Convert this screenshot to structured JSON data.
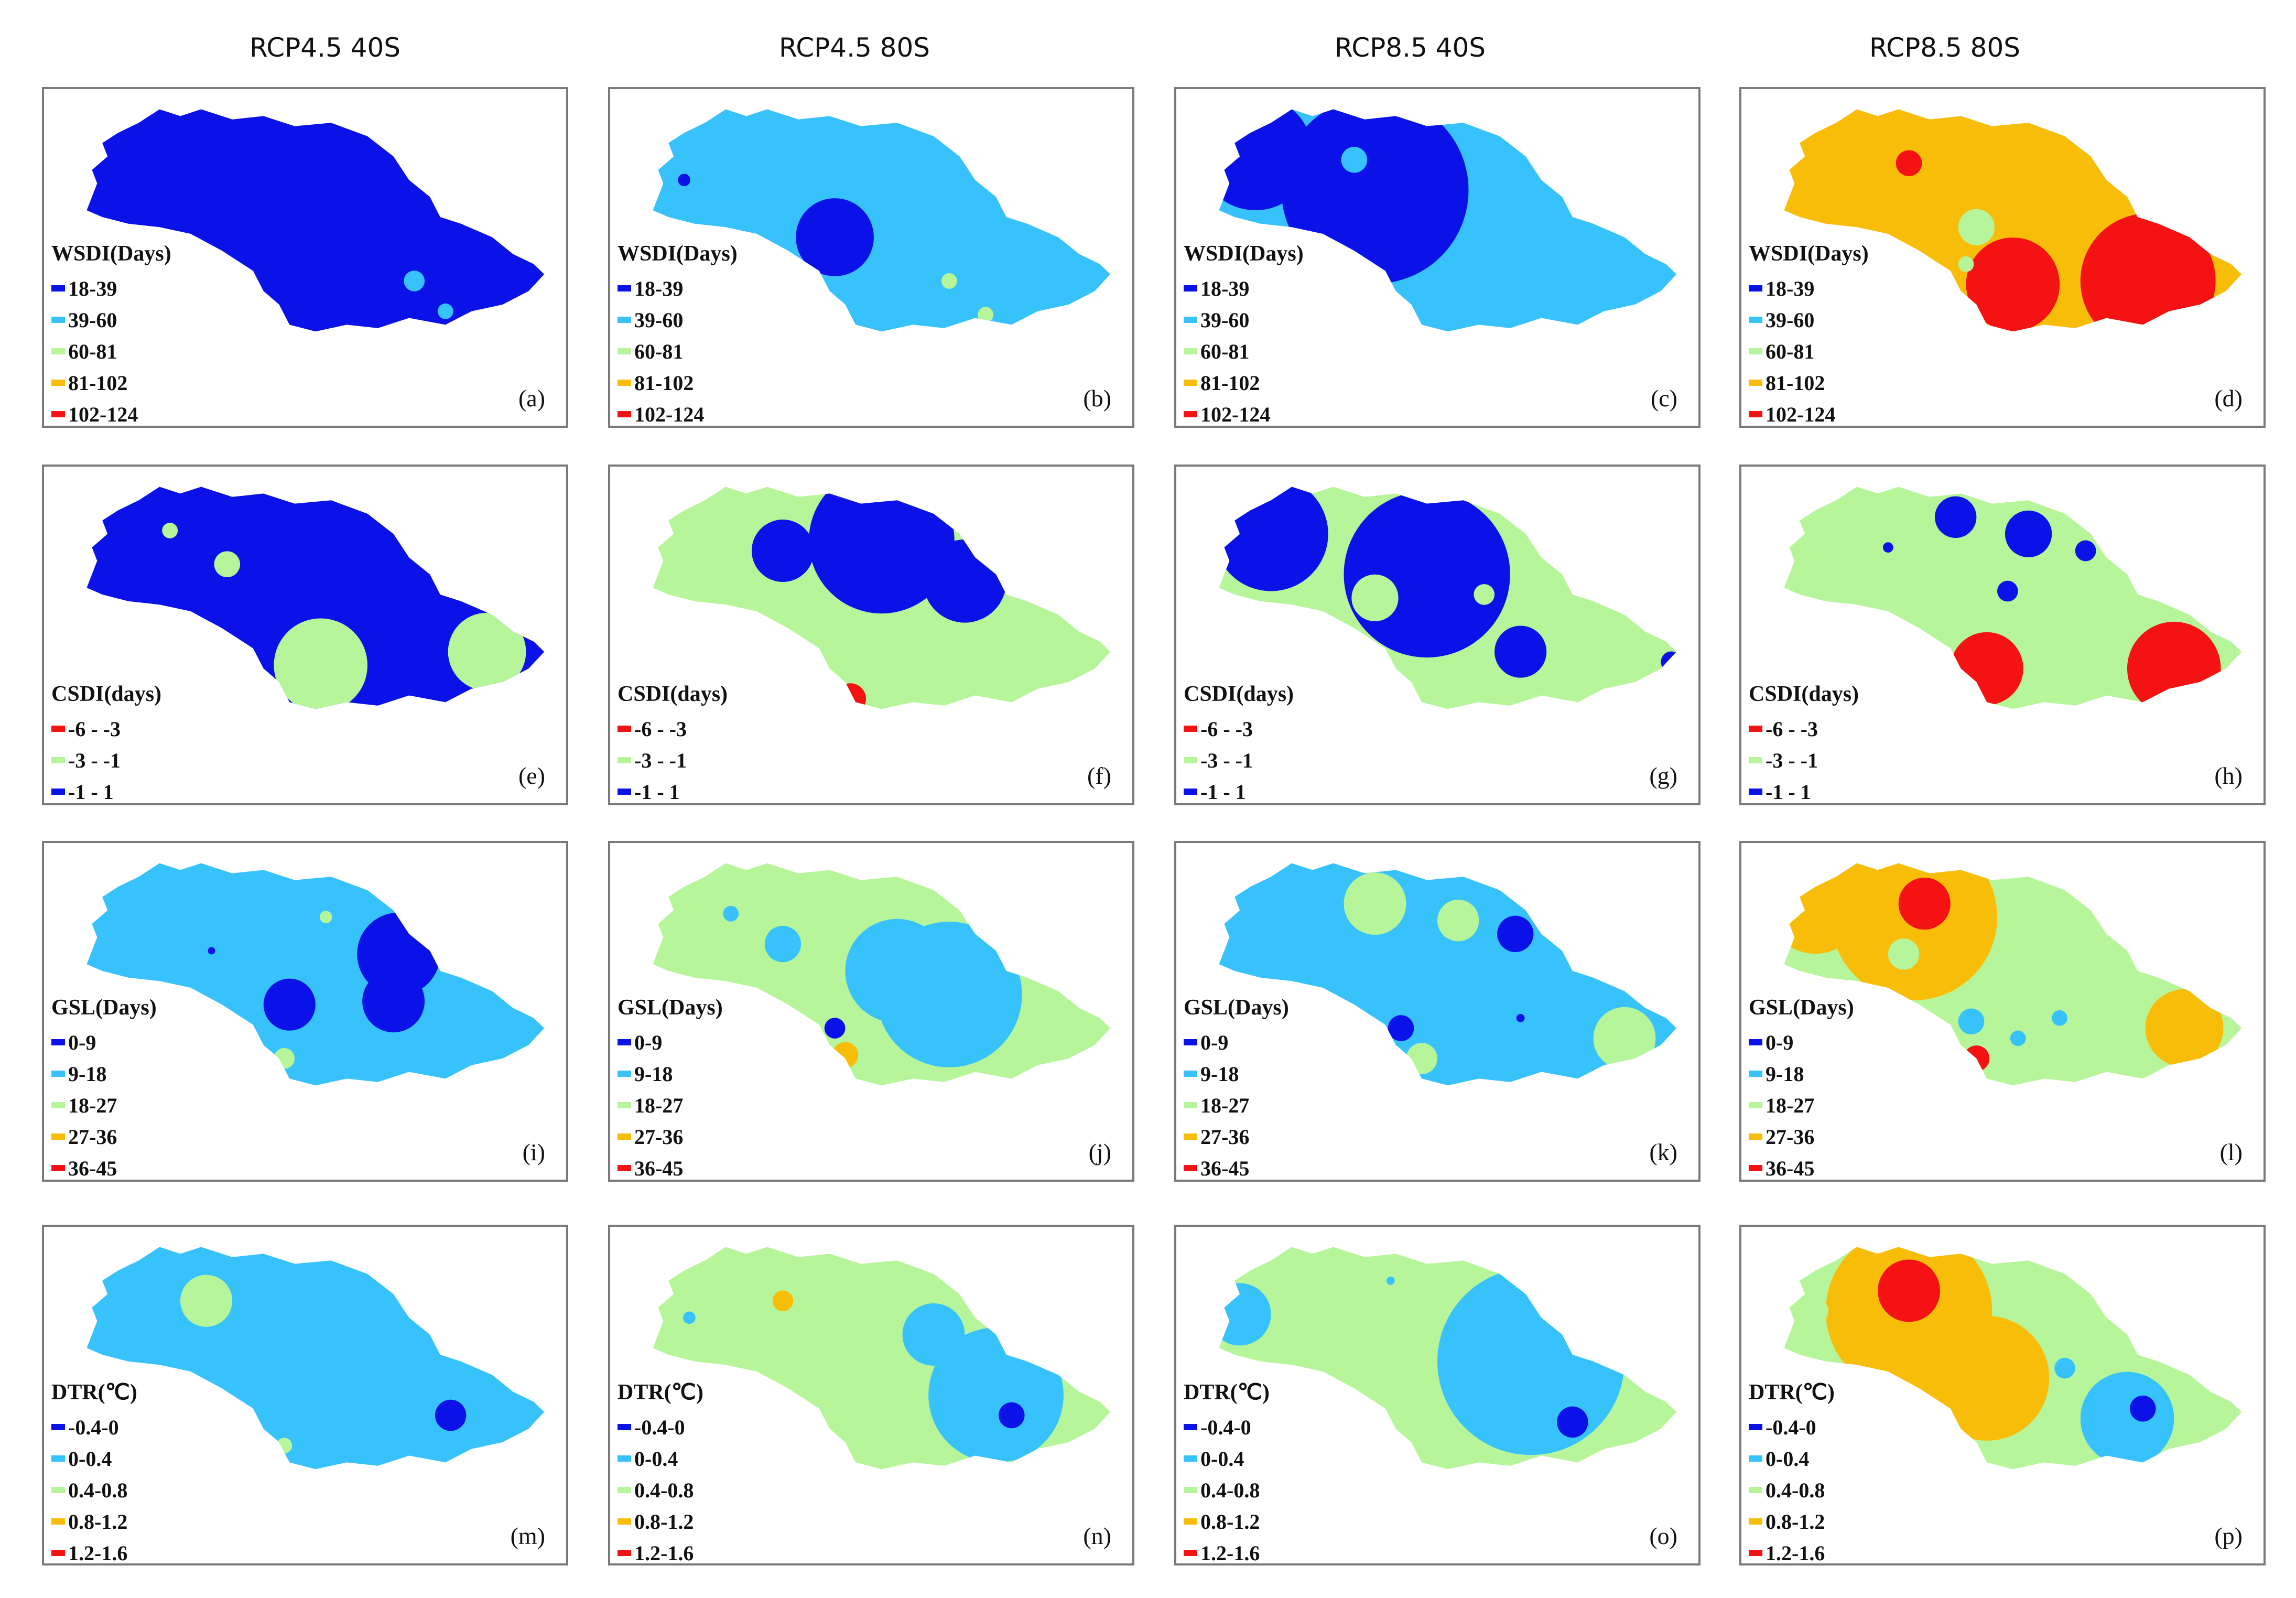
{
  "columns": [
    "RCP4.5 40S",
    "RCP4.5 80S",
    "RCP8.5 40S",
    "RCP8.5 80S"
  ],
  "colors": {
    "blue": "#0a12e8",
    "light_blue": "#38c2fb",
    "light_green": "#b6f59a",
    "orange": "#f8bd09",
    "red": "#f41212"
  },
  "legends": {
    "wsdi": {
      "title": "WSDI(Days)",
      "items": [
        {
          "label": "18-39",
          "color": "#0a12e8"
        },
        {
          "label": "39-60",
          "color": "#38c2fb"
        },
        {
          "label": "60-81",
          "color": "#b6f59a"
        },
        {
          "label": "81-102",
          "color": "#f8bd09"
        },
        {
          "label": "102-124",
          "color": "#f41212"
        }
      ]
    },
    "csdi": {
      "title": "CSDI(days)",
      "items": [
        {
          "label": "-6 - -3",
          "color": "#f41212"
        },
        {
          "label": "-3 - -1",
          "color": "#b6f59a"
        },
        {
          "label": "-1 - 1",
          "color": "#0a12e8"
        }
      ]
    },
    "gsl": {
      "title": "GSL(Days)",
      "items": [
        {
          "label": "0-9",
          "color": "#0a12e8"
        },
        {
          "label": "9-18",
          "color": "#38c2fb"
        },
        {
          "label": "18-27",
          "color": "#b6f59a"
        },
        {
          "label": "27-36",
          "color": "#f8bd09"
        },
        {
          "label": "36-45",
          "color": "#f41212"
        }
      ]
    },
    "dtr": {
      "title": "DTR(℃)",
      "items": [
        {
          "label": "-0.4-0",
          "color": "#0a12e8"
        },
        {
          "label": "0-0.4",
          "color": "#38c2fb"
        },
        {
          "label": "0.4-0.8",
          "color": "#b6f59a"
        },
        {
          "label": "0.8-1.2",
          "color": "#f8bd09"
        },
        {
          "label": "1.2-1.6",
          "color": "#f41212"
        }
      ]
    }
  },
  "panels": [
    {
      "label": "(a)",
      "legend": "wsdi",
      "base": "blue",
      "blobs": [
        {
          "color": "light_blue",
          "at": [
            0.71,
            0.57
          ],
          "r": 0.02
        },
        {
          "color": "light_blue",
          "at": [
            0.77,
            0.66
          ],
          "r": 0.015
        }
      ]
    },
    {
      "label": "(b)",
      "legend": "wsdi",
      "base": "light_blue",
      "blobs": [
        {
          "color": "blue",
          "at": [
            0.43,
            0.44
          ],
          "r": 0.075
        },
        {
          "color": "blue",
          "at": [
            0.14,
            0.27
          ],
          "r": 0.012
        },
        {
          "color": "light_green",
          "at": [
            0.65,
            0.57
          ],
          "r": 0.015
        },
        {
          "color": "light_green",
          "at": [
            0.72,
            0.67
          ],
          "r": 0.015
        }
      ]
    },
    {
      "label": "(c)",
      "legend": "wsdi",
      "base": "light_blue",
      "blobs": [
        {
          "color": "blue",
          "at": [
            0.38,
            0.3
          ],
          "r": 0.18
        },
        {
          "color": "blue",
          "at": [
            0.15,
            0.19
          ],
          "r": 0.11
        },
        {
          "color": "light_blue",
          "at": [
            0.34,
            0.21
          ],
          "r": 0.025
        }
      ]
    },
    {
      "label": "(d)",
      "legend": "wsdi",
      "base": "orange",
      "blobs": [
        {
          "color": "red",
          "at": [
            0.78,
            0.57
          ],
          "r": 0.13
        },
        {
          "color": "red",
          "at": [
            0.52,
            0.58
          ],
          "r": 0.09
        },
        {
          "color": "red",
          "at": [
            0.32,
            0.22
          ],
          "r": 0.025
        },
        {
          "color": "light_green",
          "at": [
            0.45,
            0.41
          ],
          "r": 0.035
        },
        {
          "color": "light_green",
          "at": [
            0.43,
            0.52
          ],
          "r": 0.015
        }
      ]
    },
    {
      "label": "(e)",
      "legend": "csdi",
      "base": "blue",
      "blobs": [
        {
          "color": "light_green",
          "at": [
            0.53,
            0.59
          ],
          "r": 0.09
        },
        {
          "color": "light_green",
          "at": [
            0.85,
            0.55
          ],
          "r": 0.075
        },
        {
          "color": "light_green",
          "at": [
            0.35,
            0.29
          ],
          "r": 0.025
        },
        {
          "color": "light_green",
          "at": [
            0.24,
            0.19
          ],
          "r": 0.015
        },
        {
          "color": "blue",
          "at": [
            0.97,
            0.55
          ],
          "r": 0.04
        }
      ]
    },
    {
      "label": "(f)",
      "legend": "csdi",
      "base": "light_green",
      "blobs": [
        {
          "color": "blue",
          "at": [
            0.52,
            0.22
          ],
          "r": 0.14
        },
        {
          "color": "blue",
          "at": [
            0.33,
            0.25
          ],
          "r": 0.06
        },
        {
          "color": "blue",
          "at": [
            0.68,
            0.34
          ],
          "r": 0.08
        },
        {
          "color": "red",
          "at": [
            0.46,
            0.69
          ],
          "r": 0.03
        }
      ]
    },
    {
      "label": "(g)",
      "legend": "csdi",
      "base": "light_green",
      "blobs": [
        {
          "color": "blue",
          "at": [
            0.48,
            0.32
          ],
          "r": 0.16
        },
        {
          "color": "blue",
          "at": [
            0.18,
            0.2
          ],
          "r": 0.11
        },
        {
          "color": "blue",
          "at": [
            0.66,
            0.55
          ],
          "r": 0.05
        },
        {
          "color": "light_green",
          "at": [
            0.38,
            0.39
          ],
          "r": 0.045
        },
        {
          "color": "light_green",
          "at": [
            0.59,
            0.38
          ],
          "r": 0.02
        },
        {
          "color": "blue",
          "at": [
            0.95,
            0.58
          ],
          "r": 0.02
        }
      ]
    },
    {
      "label": "(h)",
      "legend": "csdi",
      "base": "light_green",
      "blobs": [
        {
          "color": "red",
          "at": [
            0.47,
            0.6
          ],
          "r": 0.07
        },
        {
          "color": "red",
          "at": [
            0.83,
            0.6
          ],
          "r": 0.09
        },
        {
          "color": "blue",
          "at": [
            0.41,
            0.15
          ],
          "r": 0.04
        },
        {
          "color": "blue",
          "at": [
            0.55,
            0.2
          ],
          "r": 0.045
        },
        {
          "color": "blue",
          "at": [
            0.66,
            0.25
          ],
          "r": 0.02
        },
        {
          "color": "blue",
          "at": [
            0.51,
            0.37
          ],
          "r": 0.02
        },
        {
          "color": "blue",
          "at": [
            0.28,
            0.24
          ],
          "r": 0.01
        }
      ]
    },
    {
      "label": "(i)",
      "legend": "gsl",
      "base": "light_blue",
      "blobs": [
        {
          "color": "blue",
          "at": [
            0.68,
            0.33
          ],
          "r": 0.08
        },
        {
          "color": "blue",
          "at": [
            0.67,
            0.47
          ],
          "r": 0.06
        },
        {
          "color": "blue",
          "at": [
            0.47,
            0.48
          ],
          "r": 0.05
        },
        {
          "color": "light_green",
          "at": [
            0.54,
            0.22
          ],
          "r": 0.012
        },
        {
          "color": "light_green",
          "at": [
            0.46,
            0.64
          ],
          "r": 0.02
        },
        {
          "color": "blue",
          "at": [
            0.32,
            0.32
          ],
          "r": 0.007
        }
      ]
    },
    {
      "label": "(j)",
      "legend": "gsl",
      "base": "light_green",
      "blobs": [
        {
          "color": "light_blue",
          "at": [
            0.65,
            0.45
          ],
          "r": 0.14
        },
        {
          "color": "light_blue",
          "at": [
            0.55,
            0.38
          ],
          "r": 0.1
        },
        {
          "color": "light_blue",
          "at": [
            0.33,
            0.3
          ],
          "r": 0.035
        },
        {
          "color": "light_blue",
          "at": [
            0.23,
            0.21
          ],
          "r": 0.015
        },
        {
          "color": "blue",
          "at": [
            0.43,
            0.55
          ],
          "r": 0.02
        },
        {
          "color": "orange",
          "at": [
            0.45,
            0.63
          ],
          "r": 0.025
        }
      ]
    },
    {
      "label": "(k)",
      "legend": "gsl",
      "base": "light_blue",
      "blobs": [
        {
          "color": "light_green",
          "at": [
            0.38,
            0.18
          ],
          "r": 0.06
        },
        {
          "color": "light_green",
          "at": [
            0.54,
            0.23
          ],
          "r": 0.04
        },
        {
          "color": "blue",
          "at": [
            0.65,
            0.27
          ],
          "r": 0.035
        },
        {
          "color": "blue",
          "at": [
            0.43,
            0.55
          ],
          "r": 0.025
        },
        {
          "color": "light_green",
          "at": [
            0.47,
            0.64
          ],
          "r": 0.03
        },
        {
          "color": "light_green",
          "at": [
            0.86,
            0.58
          ],
          "r": 0.06
        },
        {
          "color": "blue",
          "at": [
            0.66,
            0.52
          ],
          "r": 0.008
        }
      ]
    },
    {
      "label": "(l)",
      "legend": "gsl",
      "base": "light_green",
      "blobs": [
        {
          "color": "orange",
          "at": [
            0.33,
            0.22
          ],
          "r": 0.16
        },
        {
          "color": "orange",
          "at": [
            0.14,
            0.19
          ],
          "r": 0.09
        },
        {
          "color": "orange",
          "at": [
            0.85,
            0.55
          ],
          "r": 0.075
        },
        {
          "color": "red",
          "at": [
            0.35,
            0.18
          ],
          "r": 0.05
        },
        {
          "color": "light_green",
          "at": [
            0.31,
            0.33
          ],
          "r": 0.03
        },
        {
          "color": "light_blue",
          "at": [
            0.44,
            0.53
          ],
          "r": 0.025
        },
        {
          "color": "light_blue",
          "at": [
            0.61,
            0.52
          ],
          "r": 0.015
        },
        {
          "color": "light_blue",
          "at": [
            0.53,
            0.58
          ],
          "r": 0.015
        },
        {
          "color": "red",
          "at": [
            0.45,
            0.64
          ],
          "r": 0.025
        }
      ]
    },
    {
      "label": "(m)",
      "legend": "dtr",
      "base": "light_blue",
      "blobs": [
        {
          "color": "light_green",
          "at": [
            0.31,
            0.22
          ],
          "r": 0.05
        },
        {
          "color": "blue",
          "at": [
            0.78,
            0.56
          ],
          "r": 0.03
        },
        {
          "color": "light_green",
          "at": [
            0.46,
            0.65
          ],
          "r": 0.015
        }
      ]
    },
    {
      "label": "(n)",
      "legend": "dtr",
      "base": "light_green",
      "blobs": [
        {
          "color": "light_blue",
          "at": [
            0.74,
            0.5
          ],
          "r": 0.13
        },
        {
          "color": "light_blue",
          "at": [
            0.62,
            0.32
          ],
          "r": 0.06
        },
        {
          "color": "orange",
          "at": [
            0.33,
            0.22
          ],
          "r": 0.02
        },
        {
          "color": "light_blue",
          "at": [
            0.15,
            0.27
          ],
          "r": 0.012
        },
        {
          "color": "blue",
          "at": [
            0.77,
            0.56
          ],
          "r": 0.025
        },
        {
          "color": "light_green",
          "at": [
            0.91,
            0.56
          ],
          "r": 0.015
        }
      ]
    },
    {
      "label": "(o)",
      "legend": "dtr",
      "base": "light_green",
      "blobs": [
        {
          "color": "light_blue",
          "at": [
            0.68,
            0.4
          ],
          "r": 0.18
        },
        {
          "color": "light_blue",
          "at": [
            0.12,
            0.26
          ],
          "r": 0.06
        },
        {
          "color": "blue",
          "at": [
            0.76,
            0.58
          ],
          "r": 0.03
        },
        {
          "color": "light_green",
          "at": [
            0.44,
            0.61
          ],
          "r": 0.04
        },
        {
          "color": "light_blue",
          "at": [
            0.41,
            0.16
          ],
          "r": 0.008
        }
      ]
    },
    {
      "label": "(p)",
      "legend": "dtr",
      "base": "light_green",
      "blobs": [
        {
          "color": "orange",
          "at": [
            0.32,
            0.25
          ],
          "r": 0.16
        },
        {
          "color": "orange",
          "at": [
            0.47,
            0.45
          ],
          "r": 0.12
        },
        {
          "color": "red",
          "at": [
            0.32,
            0.19
          ],
          "r": 0.06
        },
        {
          "color": "light_blue",
          "at": [
            0.74,
            0.57
          ],
          "r": 0.09
        },
        {
          "color": "light_blue",
          "at": [
            0.62,
            0.42
          ],
          "r": 0.02
        },
        {
          "color": "blue",
          "at": [
            0.77,
            0.54
          ],
          "r": 0.025
        },
        {
          "color": "light_green",
          "at": [
            0.14,
            0.25
          ],
          "r": 0.025
        },
        {
          "color": "red",
          "at": [
            0.44,
            0.67
          ],
          "r": 0.015
        }
      ]
    }
  ]
}
